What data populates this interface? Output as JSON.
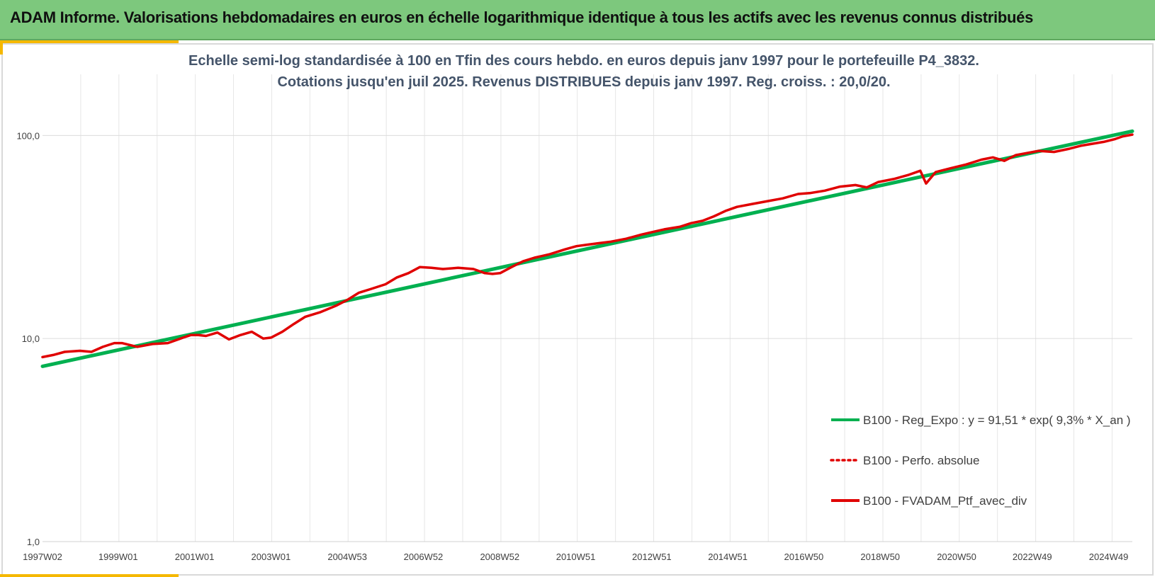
{
  "header": {
    "title": "ADAM Informe. Valorisations hebdomadaires en euros en échelle logarithmique identique à tous les actifs avec les revenus connus distribués"
  },
  "chart_data": {
    "type": "line",
    "title_lines": [
      "Echelle semi-log standardisée  à 100 en Tfin des cours hebdo.  en euros depuis janv 1997 pour  le portefeuille P4_3832.",
      "Cotations  jusqu'en juil 2025. Revenus DISTRIBUES depuis janv 1997. Reg. croiss. : 20,0/20."
    ],
    "y_scale": "log",
    "ylim": [
      1,
      200
    ],
    "y_ticks": [
      1,
      10,
      100
    ],
    "y_tick_labels": [
      "1,0",
      "10,0",
      "100,0"
    ],
    "x_range": [
      1997.02,
      2025.55
    ],
    "x_tick_positions": [
      1997.02,
      1999.0,
      2001.0,
      2003.0,
      2005.0,
      2006.99,
      2008.99,
      2010.98,
      2012.97,
      2014.96,
      2016.95,
      2018.95,
      2020.95,
      2022.93,
      2024.93
    ],
    "x_tick_labels": [
      "1997W02",
      "1999W01",
      "2001W01",
      "2003W01",
      "2004W53",
      "2006W52",
      "2008W52",
      "2010W51",
      "2012W51",
      "2014W51",
      "2016W50",
      "2018W50",
      "2020W50",
      "2022W49",
      "2024W49"
    ],
    "grid": true,
    "legend_position": "bottom-right",
    "series": [
      {
        "name": "B100 - Reg_Expo : y = 91,51 * exp( 9,3% *  X_an )",
        "color": "#00b050",
        "style": "solid",
        "x": [
          1997.02,
          2025.55
        ],
        "values": [
          7.3,
          105
        ]
      },
      {
        "name": "B100 - Perfo. absolue",
        "color": "#e00000",
        "style": "dotted",
        "x": [],
        "values": []
      },
      {
        "name": "B100 - FVADAM_Ptf_avec_div",
        "color": "#e00000",
        "style": "solid",
        "x": [
          1997.02,
          1997.3,
          1997.6,
          1998.0,
          1998.3,
          1998.6,
          1998.9,
          1999.1,
          1999.5,
          1999.9,
          2000.3,
          2000.7,
          2000.9,
          2001.1,
          2001.3,
          2001.6,
          2001.9,
          2002.2,
          2002.5,
          2002.8,
          2003.0,
          2003.3,
          2003.6,
          2003.9,
          2004.3,
          2004.7,
          2005.0,
          2005.3,
          2005.6,
          2006.0,
          2006.3,
          2006.6,
          2006.9,
          2007.2,
          2007.5,
          2007.9,
          2008.3,
          2008.6,
          2008.8,
          2009.0,
          2009.3,
          2009.6,
          2009.9,
          2010.3,
          2010.7,
          2011.0,
          2011.3,
          2011.6,
          2011.9,
          2012.3,
          2012.7,
          2013.0,
          2013.3,
          2013.7,
          2014.0,
          2014.3,
          2014.6,
          2014.9,
          2015.2,
          2015.6,
          2016.0,
          2016.4,
          2016.8,
          2017.1,
          2017.5,
          2017.9,
          2018.3,
          2018.6,
          2018.9,
          2019.3,
          2019.7,
          2020.0,
          2020.15,
          2020.4,
          2020.8,
          2021.2,
          2021.6,
          2021.9,
          2022.2,
          2022.5,
          2022.8,
          2023.1,
          2023.5,
          2023.9,
          2024.2,
          2024.5,
          2024.8,
          2025.1,
          2025.3,
          2025.55
        ],
        "values": [
          8.1,
          8.3,
          8.6,
          8.7,
          8.6,
          9.1,
          9.5,
          9.5,
          9.1,
          9.4,
          9.5,
          10.1,
          10.4,
          10.4,
          10.3,
          10.7,
          9.9,
          10.4,
          10.8,
          10.0,
          10.1,
          10.8,
          11.8,
          12.8,
          13.5,
          14.5,
          15.5,
          16.8,
          17.5,
          18.5,
          20.0,
          21.0,
          22.5,
          22.3,
          22.0,
          22.3,
          22.0,
          21.0,
          20.8,
          21.0,
          22.5,
          24.0,
          25.0,
          26.0,
          27.5,
          28.5,
          29.0,
          29.5,
          30.0,
          31.0,
          32.5,
          33.5,
          34.5,
          35.5,
          37.0,
          38.0,
          40.0,
          42.5,
          44.5,
          46.0,
          47.5,
          49.0,
          51.5,
          52.0,
          53.5,
          56.0,
          57.0,
          55.5,
          59.0,
          61.0,
          64.0,
          67.0,
          58.0,
          66.0,
          69.0,
          72.0,
          76.0,
          78.0,
          75.0,
          80.0,
          82.0,
          84.0,
          83.0,
          86.0,
          89.0,
          91.0,
          93.0,
          96.0,
          99.0,
          101.0
        ]
      }
    ]
  }
}
